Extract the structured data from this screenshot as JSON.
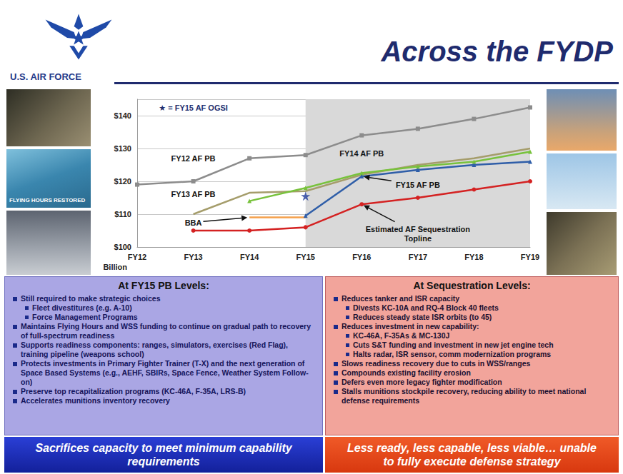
{
  "header": {
    "organization": "U.S. AIR FORCE",
    "title": "Across the FYDP"
  },
  "photos": {
    "caption": "FLYING HOURS RESTORED"
  },
  "chart_data": {
    "type": "line",
    "categories": [
      "FY12",
      "FY13",
      "FY14",
      "FY15",
      "FY16",
      "FY17",
      "FY18",
      "FY19"
    ],
    "ylim": [
      100,
      145
    ],
    "yticks": [
      {
        "value": 100,
        "label": "$100"
      },
      {
        "value": 110,
        "label": "$110"
      },
      {
        "value": 120,
        "label": "$120"
      },
      {
        "value": 130,
        "label": "$130"
      },
      {
        "value": 140,
        "label": "$140"
      }
    ],
    "y_label": "Billion",
    "grid": true,
    "shaded_categories": [
      "FY15",
      "FY19"
    ],
    "series": [
      {
        "name": "FY12 AF PB",
        "color": "#8c8c8c",
        "marker": "square",
        "values": [
          119,
          120,
          127,
          128,
          134,
          136,
          139,
          142.5
        ],
        "name_at": {
          "x": "FY13",
          "y": 127
        }
      },
      {
        "name": "FY13 AF PB",
        "color": "#a59d6b",
        "marker": "none",
        "values": [
          null,
          110,
          116.5,
          117,
          122,
          125,
          127,
          130
        ],
        "name_at": {
          "x": "FY13",
          "y": 116
        }
      },
      {
        "name": "FY14 AF PB",
        "color": "#78c23c",
        "marker": "triangle",
        "values": [
          null,
          null,
          114,
          118,
          122.5,
          124.5,
          126,
          129
        ],
        "name_at": {
          "x": "FY16",
          "y": 128.5
        }
      },
      {
        "name": "FY15 AF PB",
        "color": "#2f5ea8",
        "marker": "triangle",
        "values": [
          null,
          null,
          null,
          109.5,
          121.5,
          123.5,
          125,
          126
        ],
        "name_at": {
          "x": "FY17",
          "y": 119,
          "arrow_to": [
            "FY16",
            121.5
          ]
        }
      },
      {
        "name": "BBA",
        "color": "#f5a04a",
        "marker": "none",
        "values": [
          null,
          null,
          109,
          109,
          null,
          null,
          null,
          null
        ],
        "name_at": {
          "x": "FY13",
          "y": 107.5,
          "arrow_to": [
            "FY14",
            109
          ]
        }
      },
      {
        "name": "Estimated AF Sequestration Topline",
        "color": "#d42222",
        "marker": "circle",
        "values": [
          null,
          105,
          105,
          106,
          113,
          115,
          117.5,
          120
        ],
        "name_at": {
          "x": "FY17",
          "y": 104,
          "arrow_to": [
            "FY16",
            113
          ]
        }
      },
      {
        "type": "scatter",
        "color": "#1f3a9a",
        "marker": "star",
        "values": [
          null,
          null,
          null,
          115.5,
          null,
          null,
          null,
          null
        ]
      }
    ],
    "annotations": [
      {
        "text": "★ = FY15 AF OGSI",
        "x": "FY13",
        "y": 142.5
      }
    ]
  },
  "panels": [
    {
      "title": "At FY15 PB Levels:",
      "items": [
        {
          "text": "Still required to make strategic choices",
          "sub": [
            "Fleet divestitures (e.g. A-10)",
            "Force Management Programs"
          ]
        },
        {
          "text": "Maintains Flying Hours and WSS funding to continue on gradual path to recovery of full-spectrum readiness"
        },
        {
          "text": "Supports readiness components: ranges, simulators, exercises (Red Flag), training pipeline (weapons school)"
        },
        {
          "text": "Protects investments in Primary Fighter Trainer (T-X) and the next generation of Space Based Systems (e.g., AEHF, SBIRs, Space Fence, Weather System Follow-on)"
        },
        {
          "text": "Preserve top recapitalization programs (KC-46A, F-35A, LRS-B)"
        },
        {
          "text": "Accelerates munitions inventory recovery"
        }
      ],
      "footer": "Sacrifices capacity to meet minimum capability requirements"
    },
    {
      "title": "At Sequestration Levels:",
      "items": [
        {
          "text": "Reduces tanker and ISR capacity",
          "sub": [
            "Divests KC-10A and RQ-4 Block 40 fleets",
            "Reduces steady state ISR orbits (to 45)"
          ]
        },
        {
          "text": "Reduces investment in new capability:",
          "sub": [
            "KC-46A, F-35As & MC-130J",
            "Cuts S&T funding and investment in new jet engine tech",
            "Halts radar, ISR sensor, comm modernization programs"
          ]
        },
        {
          "text": "Slows readiness recovery due to cuts in WSS/ranges"
        },
        {
          "text": "Compounds existing facility erosion"
        },
        {
          "text": "Defers even more legacy fighter modification"
        },
        {
          "text": "Stalls munitions stockpile recovery, reducing ability to meet national defense requirements"
        }
      ],
      "footer": "Less ready, less capable, less viable… unable to fully execute defense strategy"
    }
  ]
}
